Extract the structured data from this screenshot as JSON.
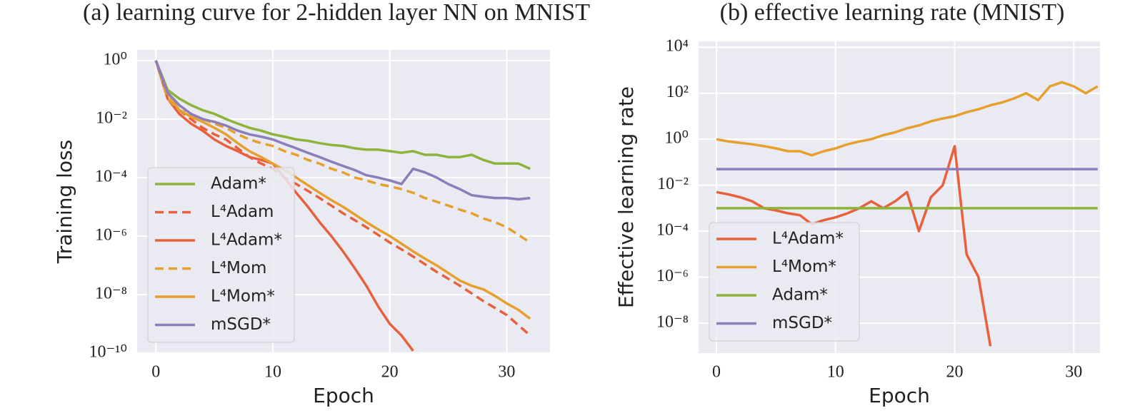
{
  "chart_data": [
    {
      "type": "line",
      "title": "(a) learning curve for 2-hidden layer NN on MNIST",
      "xlabel": "Epoch",
      "ylabel": "Training loss",
      "yscale": "log",
      "grid": true,
      "legend": "lower left",
      "x": [
        0,
        1,
        2,
        3,
        4,
        5,
        6,
        7,
        8,
        9,
        10,
        11,
        12,
        13,
        14,
        15,
        16,
        17,
        18,
        19,
        20,
        21,
        22,
        23,
        24,
        25,
        26,
        27,
        28,
        29,
        30,
        31,
        32
      ],
      "xlim": [
        -1.6,
        33.7
      ],
      "xticks": [
        0,
        10,
        20,
        30
      ],
      "ylim": [
        1e-10,
        2.3
      ],
      "yticks": [
        {
          "value": 1,
          "label": "10⁰"
        },
        {
          "value": 0.01,
          "label": "10⁻²"
        },
        {
          "value": 0.0001,
          "label": "10⁻⁴"
        },
        {
          "value": 1e-06,
          "label": "10⁻⁶"
        },
        {
          "value": 1e-08,
          "label": "10⁻⁸"
        },
        {
          "value": 1e-10,
          "label": "10⁻¹⁰"
        }
      ],
      "series": [
        {
          "name": "Adam*",
          "color": "#8db33a",
          "style": "solid",
          "values": [
            1,
            0.1,
            0.05,
            0.03,
            0.02,
            0.015,
            0.01,
            0.007,
            0.005,
            0.004,
            0.003,
            0.0025,
            0.002,
            0.0018,
            0.0015,
            0.0013,
            0.0012,
            0.001,
            0.0009,
            0.0009,
            0.0008,
            0.0007,
            0.0008,
            0.0006,
            0.0006,
            0.0005,
            0.0005,
            0.0006,
            0.0004,
            0.0003,
            0.0003,
            0.0003,
            0.0002
          ]
        },
        {
          "name": "L⁴Adam",
          "color": "#e8603c",
          "style": "dashed",
          "values": [
            1,
            0.08,
            0.02,
            0.01,
            0.005,
            0.003,
            0.002,
            0.001,
            0.0005,
            0.0003,
            0.0002,
            0.0001,
            6e-05,
            3.5e-05,
            2e-05,
            1.1e-05,
            6e-06,
            3.5e-06,
            2e-06,
            1.1e-06,
            6e-07,
            3.5e-07,
            2e-07,
            1.1e-07,
            6e-08,
            3.5e-08,
            2e-08,
            1.1e-08,
            6e-09,
            3.5e-09,
            2e-09,
            9e-10,
            4e-10
          ]
        },
        {
          "name": "L⁴Adam*",
          "color": "#e8603c",
          "style": "solid",
          "values": [
            1,
            0.05,
            0.015,
            0.007,
            0.004,
            0.002,
            0.0012,
            0.0008,
            0.0005,
            0.0004,
            0.0003,
            0.0001,
            3e-05,
            1e-05,
            3e-06,
            1e-06,
            3e-07,
            8e-08,
            2e-08,
            4e-09,
            1e-09,
            4e-10,
            1.2e-10,
            null,
            null,
            null,
            null,
            null,
            null,
            null,
            null,
            null,
            null
          ]
        },
        {
          "name": "L⁴Mom",
          "color": "#e5a02e",
          "style": "dashed",
          "values": [
            1,
            0.05,
            0.02,
            0.014,
            0.01,
            0.007,
            0.005,
            0.003,
            0.002,
            0.0015,
            0.0012,
            0.0008,
            0.0006,
            0.0004,
            0.0003,
            0.0002,
            0.00015,
            0.0001,
            8e-05,
            6e-05,
            5e-05,
            4e-05,
            3e-05,
            2e-05,
            1.5e-05,
            1.1e-05,
            8e-06,
            6e-06,
            4e-06,
            3e-06,
            2e-06,
            1.1e-06,
            6e-07
          ]
        },
        {
          "name": "L⁴Mom*",
          "color": "#e5a02e",
          "style": "solid",
          "values": [
            1,
            0.08,
            0.02,
            0.012,
            0.008,
            0.005,
            0.003,
            0.0015,
            0.0008,
            0.0005,
            0.0003,
            0.00018,
            0.0001,
            5.5e-05,
            3e-05,
            1.7e-05,
            1e-05,
            5.5e-06,
            3e-06,
            1.7e-06,
            1e-06,
            5.5e-07,
            3e-07,
            1.7e-07,
            1e-07,
            5.5e-08,
            3e-08,
            2e-08,
            1.5e-08,
            9e-09,
            5e-09,
            3e-09,
            1.5e-09
          ]
        },
        {
          "name": "mSGD*",
          "color": "#8c7dbb",
          "style": "solid",
          "values": [
            1,
            0.08,
            0.03,
            0.015,
            0.01,
            0.008,
            0.006,
            0.004,
            0.003,
            0.0025,
            0.002,
            0.0014,
            0.001,
            0.0007,
            0.0005,
            0.00035,
            0.00025,
            0.00018,
            0.00012,
            0.0001,
            8e-05,
            6e-05,
            0.0002,
            0.00015,
            0.0001,
            6e-05,
            4e-05,
            2.5e-05,
            2.2e-05,
            2e-05,
            2e-05,
            1.8e-05,
            2e-05
          ]
        }
      ]
    },
    {
      "type": "line",
      "title": "(b) effective learning rate (MNIST)",
      "xlabel": "Epoch",
      "ylabel": "Effective learning rate",
      "yscale": "log",
      "grid": true,
      "legend": "lower left",
      "x": [
        0,
        1,
        2,
        3,
        4,
        5,
        6,
        7,
        8,
        9,
        10,
        11,
        12,
        13,
        14,
        15,
        16,
        17,
        18,
        19,
        20,
        21,
        22,
        23,
        24,
        25,
        26,
        27,
        28,
        29,
        30,
        31,
        32
      ],
      "xlim": [
        -1.5,
        32.2
      ],
      "xticks": [
        0,
        10,
        20,
        30
      ],
      "ylim": [
        5e-10,
        18000
      ],
      "yticks": [
        {
          "value": 10000,
          "label": "10⁴"
        },
        {
          "value": 100,
          "label": "10²"
        },
        {
          "value": 1,
          "label": "10⁰"
        },
        {
          "value": 0.01,
          "label": "10⁻²"
        },
        {
          "value": 0.0001,
          "label": "10⁻⁴"
        },
        {
          "value": 1e-06,
          "label": "10⁻⁶"
        },
        {
          "value": 1e-08,
          "label": "10⁻⁸"
        }
      ],
      "series": [
        {
          "name": "L⁴Adam*",
          "color": "#e8603c",
          "style": "solid",
          "values": [
            0.005,
            0.004,
            0.003,
            0.002,
            0.001,
            0.0008,
            0.0006,
            0.0005,
            0.0002,
            0.0003,
            0.0004,
            0.0006,
            0.001,
            0.002,
            0.001,
            0.002,
            0.005,
            0.0001,
            0.003,
            0.01,
            0.5,
            1e-05,
            1e-06,
            1e-09,
            null,
            null,
            null,
            null,
            null,
            null,
            null,
            null,
            null
          ]
        },
        {
          "name": "L⁴Mom*",
          "color": "#e5a02e",
          "style": "solid",
          "values": [
            1,
            0.8,
            0.7,
            0.6,
            0.5,
            0.4,
            0.3,
            0.3,
            0.2,
            0.3,
            0.4,
            0.6,
            0.8,
            1,
            1.5,
            2,
            3,
            4,
            6,
            8,
            10,
            15,
            20,
            30,
            40,
            60,
            100,
            50,
            200,
            300,
            200,
            100,
            200
          ]
        },
        {
          "name": "Adam*",
          "color": "#8db33a",
          "style": "solid",
          "values": [
            0.001,
            0.001,
            0.001,
            0.001,
            0.001,
            0.001,
            0.001,
            0.001,
            0.001,
            0.001,
            0.001,
            0.001,
            0.001,
            0.001,
            0.001,
            0.001,
            0.001,
            0.001,
            0.001,
            0.001,
            0.001,
            0.001,
            0.001,
            0.001,
            0.001,
            0.001,
            0.001,
            0.001,
            0.001,
            0.001,
            0.001,
            0.001,
            0.001
          ]
        },
        {
          "name": "mSGD*",
          "color": "#8c7dbb",
          "style": "solid",
          "values": [
            0.05,
            0.05,
            0.05,
            0.05,
            0.05,
            0.05,
            0.05,
            0.05,
            0.05,
            0.05,
            0.05,
            0.05,
            0.05,
            0.05,
            0.05,
            0.05,
            0.05,
            0.05,
            0.05,
            0.05,
            0.05,
            0.05,
            0.05,
            0.05,
            0.05,
            0.05,
            0.05,
            0.05,
            0.05,
            0.05,
            0.05,
            0.05,
            0.05
          ]
        }
      ]
    }
  ]
}
